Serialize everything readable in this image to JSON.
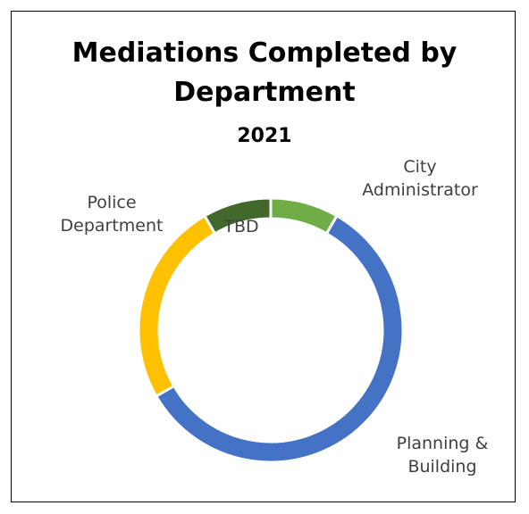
{
  "chart_data": {
    "type": "donut",
    "title": "Mediations Completed by Department",
    "subtitle": "2021",
    "categories": [
      "City Administrator",
      "Planning & Building",
      "Police Department",
      "TBD"
    ],
    "values": [
      1,
      7,
      3,
      1
    ],
    "colors": [
      "#70ad47",
      "#4472c4",
      "#ffc000",
      "#43682b"
    ]
  }
}
